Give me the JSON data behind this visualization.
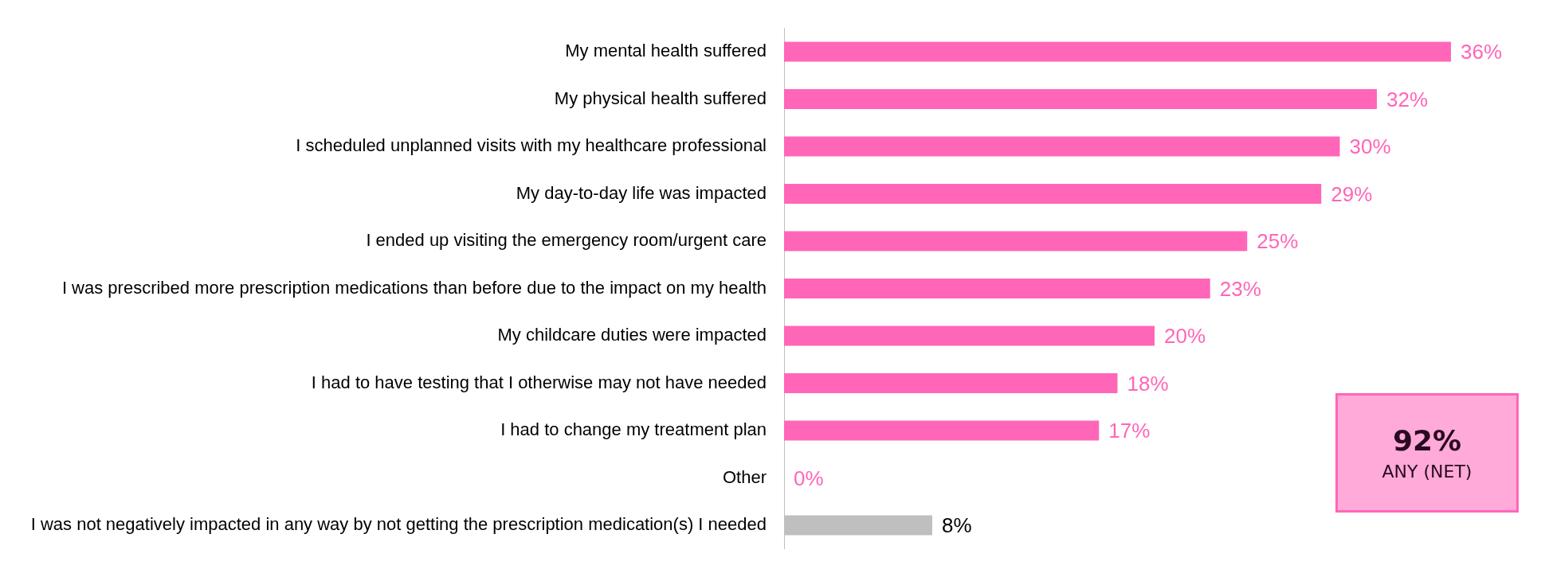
{
  "chart_data": {
    "type": "bar",
    "orientation": "horizontal",
    "value_labels": [
      "36%",
      "32%",
      "30%",
      "29%",
      "25%",
      "23%",
      "20%",
      "18%",
      "17%",
      "0%",
      "8%"
    ],
    "categories": [
      "My mental health suffered",
      "My physical health suffered",
      "I scheduled unplanned visits with my healthcare professional",
      "My day-to-day life was impacted",
      "I ended up visiting the emergency room/urgent care",
      "I was prescribed more prescription medications than before due to the impact on my health",
      "My childcare duties were impacted",
      "I had to have testing that I otherwise may not have needed",
      "I had to change my treatment plan",
      "Other",
      "I was not negatively impacted in any way by not getting the prescription medication(s) I needed"
    ],
    "values": [
      36,
      32,
      30,
      29,
      25,
      23,
      20,
      18,
      17,
      0,
      8
    ],
    "colors": [
      "#ff66b8",
      "#ff66b8",
      "#ff66b8",
      "#ff66b8",
      "#ff66b8",
      "#ff66b8",
      "#ff66b8",
      "#ff66b8",
      "#ff66b8",
      "#ff66b8",
      "#bfbfbf"
    ],
    "annotations": [
      "92%",
      "ANY (NET)"
    ],
    "grid": false,
    "legend": false
  }
}
